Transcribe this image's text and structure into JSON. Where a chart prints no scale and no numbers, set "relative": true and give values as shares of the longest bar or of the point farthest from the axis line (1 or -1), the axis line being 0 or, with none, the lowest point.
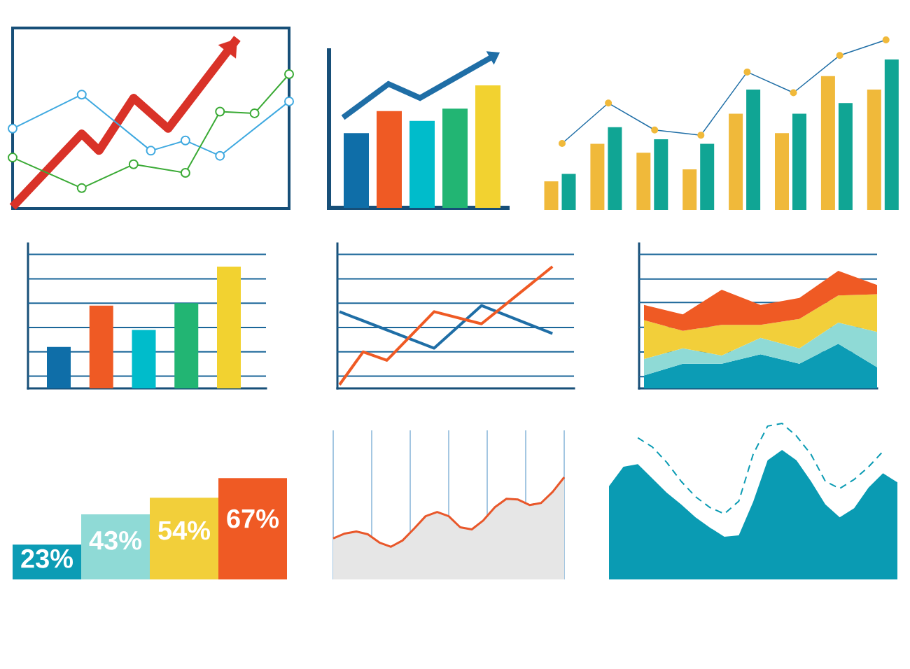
{
  "chart_data": [
    {
      "type": "line",
      "relative": true,
      "categories": [
        null,
        null,
        null,
        null,
        null,
        null,
        null,
        null,
        null,
        null,
        null,
        null,
        null,
        null,
        null,
        null,
        null
      ],
      "series": [
        {
          "color": "#d93228",
          "values": [
            0.01,
            null,
            null,
            null,
            0.44,
            0.34,
            null,
            0.65,
            null,
            0.47,
            null,
            null,
            null,
            1.0,
            null,
            null,
            null
          ]
        },
        {
          "color": "#3fa9e0",
          "marker": "circle",
          "values": [
            0.47,
            null,
            null,
            null,
            0.67,
            null,
            null,
            null,
            0.34,
            null,
            0.4,
            null,
            0.31,
            null,
            null,
            null,
            0.63
          ]
        },
        {
          "color": "#3aaa35",
          "marker": "circle",
          "values": [
            0.3,
            null,
            null,
            null,
            0.12,
            null,
            null,
            0.26,
            null,
            null,
            0.21,
            null,
            0.57,
            null,
            0.56,
            null,
            0.79
          ]
        }
      ]
    },
    {
      "type": "bar",
      "relative": true,
      "categories": [
        null,
        null,
        null,
        null,
        null
      ],
      "series": [
        {
          "colors": [
            "#0f6ea8",
            "#ef5a24",
            "#00bccb",
            "#22b573",
            "#f2d230"
          ],
          "values": [
            0.61,
            0.79,
            0.71,
            0.81,
            1.0
          ]
        }
      ]
    },
    {
      "type": "bar",
      "relative": true,
      "categories": [
        null,
        null,
        null,
        null,
        null,
        null,
        null,
        null
      ],
      "series": [
        {
          "color": "#f0b93a",
          "values": [
            0.19,
            0.44,
            0.38,
            0.27,
            0.64,
            0.51,
            0.89,
            0.8
          ]
        },
        {
          "color": "#10a594",
          "values": [
            0.24,
            0.55,
            0.47,
            0.44,
            0.8,
            0.64,
            0.71,
            1.0
          ]
        }
      ]
    },
    {
      "type": "line",
      "relative": true,
      "marker": "circle",
      "categories": [
        null,
        null,
        null,
        null,
        null,
        null,
        null,
        null
      ],
      "series": [
        {
          "color": "#1f6ea6",
          "values": [
            0,
            0.39,
            0.13,
            0.08,
            0.69,
            0.49,
            0.85,
            1.0
          ]
        }
      ]
    },
    {
      "type": "bar",
      "relative": true,
      "ref_lines": [
        {
          "axis": "y",
          "value": 0.1,
          "color": "#1b6699"
        },
        {
          "axis": "y",
          "value": 0.3,
          "color": "#1b6699"
        },
        {
          "axis": "y",
          "value": 0.5,
          "color": "#1b6699"
        },
        {
          "axis": "y",
          "value": 0.7,
          "color": "#1b6699"
        },
        {
          "axis": "y",
          "value": 0.9,
          "color": "#1b6699"
        },
        {
          "axis": "y",
          "value": 1.1,
          "color": "#1b6699"
        }
      ],
      "categories": [
        null,
        null,
        null,
        null,
        null
      ],
      "series": [
        {
          "colors": [
            "#0f6ea8",
            "#ef5a24",
            "#00bccb",
            "#22b573",
            "#f2d230"
          ],
          "values": [
            0.34,
            0.68,
            0.48,
            0.7,
            1.0
          ]
        }
      ]
    },
    {
      "type": "line",
      "relative": true,
      "ref_lines": [
        {
          "axis": "y",
          "value": 0.1,
          "color": "#1b6699"
        },
        {
          "axis": "y",
          "value": 0.3,
          "color": "#1b6699"
        },
        {
          "axis": "y",
          "value": 0.5,
          "color": "#1b6699"
        },
        {
          "axis": "y",
          "value": 0.7,
          "color": "#1b6699"
        },
        {
          "axis": "y",
          "value": 0.9,
          "color": "#1b6699"
        },
        {
          "axis": "y",
          "value": 1.1,
          "color": "#1b6699"
        }
      ],
      "categories": [
        null,
        null,
        null,
        null,
        null,
        null,
        null,
        null,
        null,
        null
      ],
      "series": [
        {
          "color": "#1f6ea6",
          "values": [
            0.63,
            null,
            null,
            null,
            0.33,
            null,
            0.68,
            null,
            null,
            0.45
          ]
        },
        {
          "color": "#ef5a24",
          "values": [
            0.03,
            0.3,
            0.23,
            null,
            0.63,
            null,
            0.53,
            null,
            null,
            1.0
          ]
        }
      ]
    },
    {
      "type": "area",
      "relative": true,
      "stacked": true,
      "ref_lines": [
        {
          "axis": "y",
          "value": 0.1,
          "color": "#1b6699"
        },
        {
          "axis": "y",
          "value": 0.31,
          "color": "#1b6699"
        },
        {
          "axis": "y",
          "value": 0.52,
          "color": "#1b6699"
        },
        {
          "axis": "y",
          "value": 0.73,
          "color": "#1b6699"
        },
        {
          "axis": "y",
          "value": 0.93,
          "color": "#1b6699"
        },
        {
          "axis": "y",
          "value": 1.14,
          "color": "#1b6699"
        }
      ],
      "categories": [
        null,
        null,
        null,
        null,
        null,
        null,
        null
      ],
      "series": [
        {
          "color": "#0c9cb5",
          "values": [
            0.11,
            0.21,
            0.21,
            0.29,
            0.21,
            0.38,
            0.18
          ]
        },
        {
          "color": "#8fdad6",
          "values": [
            0.14,
            0.13,
            0.07,
            0.14,
            0.13,
            0.18,
            0.3
          ]
        },
        {
          "color": "#f2cf3a",
          "values": [
            0.33,
            0.15,
            0.26,
            0.11,
            0.25,
            0.23,
            0.32
          ]
        },
        {
          "color": "#ef5a24",
          "values": [
            0.13,
            0.14,
            0.3,
            0.17,
            0.18,
            0.21,
            0.08
          ]
        }
      ]
    },
    {
      "type": "bar",
      "tick_labels": false,
      "categories": [
        null,
        null,
        null,
        null
      ],
      "values": [
        23,
        43,
        54,
        67
      ],
      "colors": [
        "#0c9cb5",
        "#8fdad6",
        "#f2cf3a",
        "#ef5a24"
      ],
      "value_labels": [
        "23%",
        "43%",
        "54%",
        "67%"
      ]
    },
    {
      "type": "area",
      "relative": true,
      "grid": "x",
      "categories": [
        null,
        null,
        null,
        null,
        null,
        null,
        null,
        null,
        null,
        null,
        null,
        null,
        null,
        null,
        null,
        null,
        null,
        null,
        null,
        null,
        null
      ],
      "series": [
        {
          "color": "#e6e6e6",
          "values": [
            0.4,
            0.45,
            0.47,
            0.44,
            0.36,
            0.32,
            0.38,
            0.5,
            0.62,
            0.66,
            0.62,
            0.51,
            0.49,
            0.58,
            0.71,
            0.79,
            0.78,
            0.73,
            0.75,
            0.86,
            1.0
          ]
        }
      ]
    },
    {
      "type": "line",
      "relative": true,
      "categories": [
        null,
        null,
        null,
        null,
        null,
        null,
        null,
        null,
        null,
        null,
        null,
        null,
        null,
        null,
        null,
        null,
        null,
        null,
        null,
        null,
        null
      ],
      "series": [
        {
          "color": "#e8572a",
          "values": [
            0.12,
            0.19,
            0.22,
            0.18,
            0.06,
            0,
            0.09,
            0.26,
            0.44,
            0.5,
            0.44,
            0.28,
            0.25,
            0.38,
            0.57,
            0.69,
            0.68,
            0.6,
            0.63,
            0.79,
            1.0
          ]
        }
      ]
    },
    {
      "type": "area",
      "relative": true,
      "categories": [
        null,
        null,
        null,
        null,
        null,
        null,
        null,
        null,
        null,
        null,
        null,
        null,
        null,
        null,
        null,
        null,
        null,
        null,
        null,
        null,
        null
      ],
      "series": [
        {
          "color": "#0a9bb3",
          "values": [
            0.72,
            0.87,
            0.89,
            0.78,
            0.67,
            0.58,
            0.48,
            0.4,
            0.33,
            0.34,
            0.6,
            0.92,
            1.0,
            0.92,
            0.76,
            0.58,
            0.48,
            0.55,
            0.71,
            0.82,
            0.75
          ]
        }
      ]
    },
    {
      "type": "line",
      "relative": true,
      "line_style": "dashed",
      "categories": [
        null,
        null,
        null,
        null,
        null,
        null,
        null,
        null,
        null,
        null,
        null,
        null,
        null,
        null,
        null,
        null,
        null,
        null
      ],
      "series": [
        {
          "color": "#0a9bb3",
          "values": [
            0.84,
            0.74,
            0.57,
            0.36,
            0.19,
            0.07,
            0,
            0.14,
            0.66,
            0.97,
            1.0,
            0.86,
            0.66,
            0.36,
            0.28,
            0.38,
            0.52,
            0.69
          ]
        }
      ]
    }
  ]
}
